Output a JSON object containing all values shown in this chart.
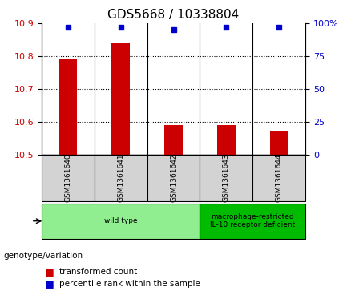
{
  "title": "GDS5668 / 10338804",
  "samples": [
    "GSM1361640",
    "GSM1361641",
    "GSM1361642",
    "GSM1361643",
    "GSM1361644"
  ],
  "bar_values": [
    10.79,
    10.84,
    10.59,
    10.59,
    10.57
  ],
  "percentile_values": [
    97,
    97,
    95,
    97,
    97
  ],
  "bar_bottom": 10.5,
  "ylim_left": [
    10.5,
    10.9
  ],
  "ylim_right": [
    0,
    100
  ],
  "yticks_left": [
    10.5,
    10.6,
    10.7,
    10.8,
    10.9
  ],
  "yticks_right": [
    0,
    25,
    50,
    75,
    100
  ],
  "ytick_labels_right": [
    "0",
    "25",
    "50",
    "75",
    "100%"
  ],
  "bar_color": "#cc0000",
  "dot_color": "#0000cc",
  "grid_color": "#000000",
  "bg_color": "#ffffff",
  "genotype_groups": [
    {
      "label": "wild type",
      "samples": [
        0,
        1,
        2
      ],
      "color": "#90ee90"
    },
    {
      "label": "macrophage-restricted\nIL-10 receptor deficient",
      "samples": [
        3,
        4
      ],
      "color": "#00bb00"
    }
  ],
  "legend_items": [
    {
      "label": "transformed count",
      "color": "#cc0000"
    },
    {
      "label": "percentile rank within the sample",
      "color": "#0000cc"
    }
  ],
  "left_label": "genotype/variation",
  "sample_box_color": "#d3d3d3",
  "title_fontsize": 11,
  "tick_fontsize": 8,
  "label_fontsize": 8
}
